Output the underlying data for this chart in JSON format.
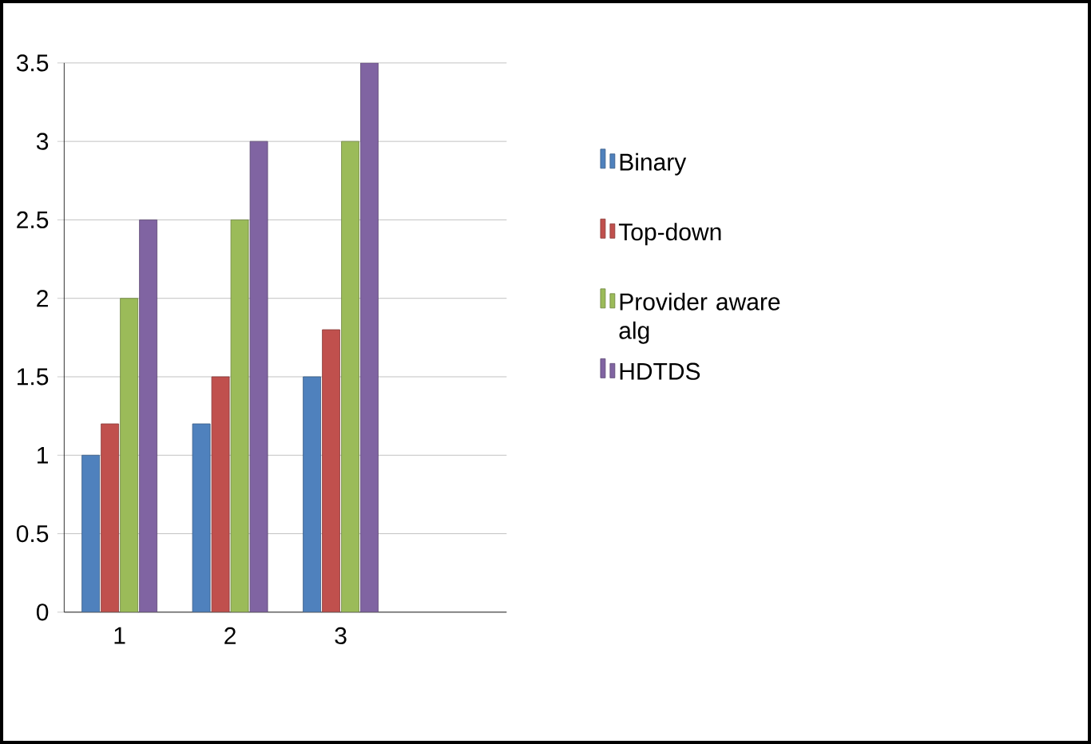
{
  "chart_data": {
    "type": "bar",
    "categories": [
      "1",
      "2",
      "3",
      null
    ],
    "series": [
      {
        "name": "Binary",
        "color": "#4f81bd",
        "values": [
          1,
          1.2,
          1.5,
          null
        ]
      },
      {
        "name": "Top-down",
        "color": "#c0504d",
        "values": [
          1.2,
          1.5,
          1.8,
          null
        ]
      },
      {
        "name": "Provider aware alg",
        "color": "#9bbb59",
        "values": [
          2,
          2.5,
          3,
          null
        ]
      },
      {
        "name": "HDTDS",
        "color": "#8064a2",
        "values": [
          2.5,
          3,
          3.5,
          null
        ]
      }
    ],
    "ylim": [
      0,
      3.5
    ],
    "yticks": [
      0,
      0.5,
      1,
      1.5,
      2,
      2.5,
      3,
      3.5
    ],
    "grid": "y",
    "legend": "right"
  }
}
